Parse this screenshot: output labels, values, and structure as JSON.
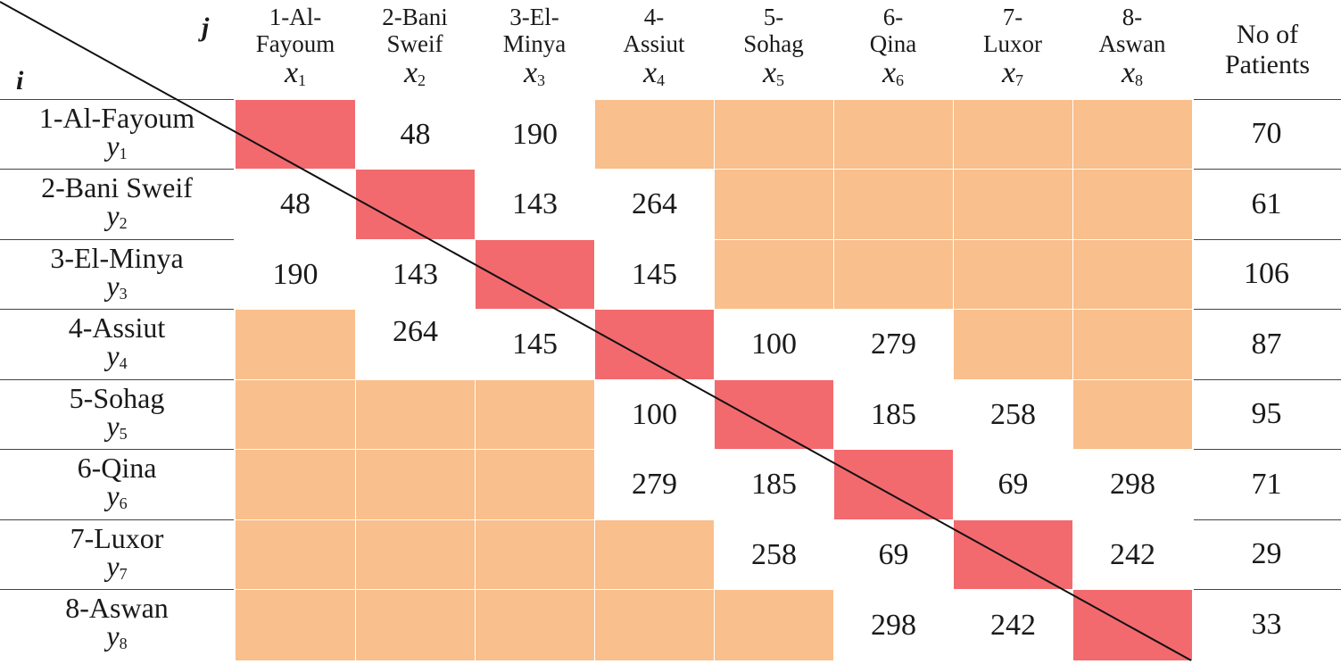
{
  "corner": {
    "col_label": "j",
    "row_label": "i"
  },
  "patients_header": "No of\nPatients",
  "cities": [
    {
      "col_label": "1-Al-\nFayoum",
      "row_label": "1-Al-Fayoum",
      "var_base": "x",
      "row_var_base": "y",
      "index": "1",
      "patients": "70"
    },
    {
      "col_label": "2-Bani\nSweif",
      "row_label": "2-Bani Sweif",
      "var_base": "x",
      "row_var_base": "y",
      "index": "2",
      "patients": "61"
    },
    {
      "col_label": "3-El-\nMinya",
      "row_label": "3-El-Minya",
      "var_base": "x",
      "row_var_base": "y",
      "index": "3",
      "patients": "106"
    },
    {
      "col_label": "4-\nAssiut",
      "row_label": "4-Assiut",
      "var_base": "x",
      "row_var_base": "y",
      "index": "4",
      "patients": "87"
    },
    {
      "col_label": "5-\nSohag",
      "row_label": "5-Sohag",
      "var_base": "x",
      "row_var_base": "y",
      "index": "5",
      "patients": "95"
    },
    {
      "col_label": "6-\nQina",
      "row_label": "6-Qina",
      "var_base": "x",
      "row_var_base": "y",
      "index": "6",
      "patients": "71"
    },
    {
      "col_label": "7-\nLuxor",
      "row_label": "7-Luxor",
      "var_base": "x",
      "row_var_base": "y",
      "index": "7",
      "patients": "29"
    },
    {
      "col_label": "8-\nAswan",
      "row_label": "8-Aswan",
      "var_base": "x",
      "row_var_base": "y",
      "index": "8",
      "patients": "33"
    }
  ],
  "matrix": [
    [
      "D",
      "48",
      "190",
      "O",
      "O",
      "O",
      "O",
      "O"
    ],
    [
      "48",
      "D",
      "143",
      "264",
      "O",
      "O",
      "O",
      "O"
    ],
    [
      "190",
      "143",
      "D",
      "145",
      "O",
      "O",
      "O",
      "O"
    ],
    [
      "O",
      "264",
      "145",
      "D",
      "100",
      "279",
      "O",
      "O"
    ],
    [
      "O",
      "O",
      "O",
      "100",
      "D",
      "185",
      "258",
      "O"
    ],
    [
      "O",
      "O",
      "O",
      "279",
      "185",
      "D",
      "69",
      "298"
    ],
    [
      "O",
      "O",
      "O",
      "O",
      "258",
      "69",
      "D",
      "242"
    ],
    [
      "O",
      "O",
      "O",
      "O",
      "O",
      "298",
      "242",
      "D"
    ]
  ],
  "colors": {
    "unconnected": "#f9bf8c",
    "diagonal": "#f26a6e",
    "line": "#111111"
  }
}
